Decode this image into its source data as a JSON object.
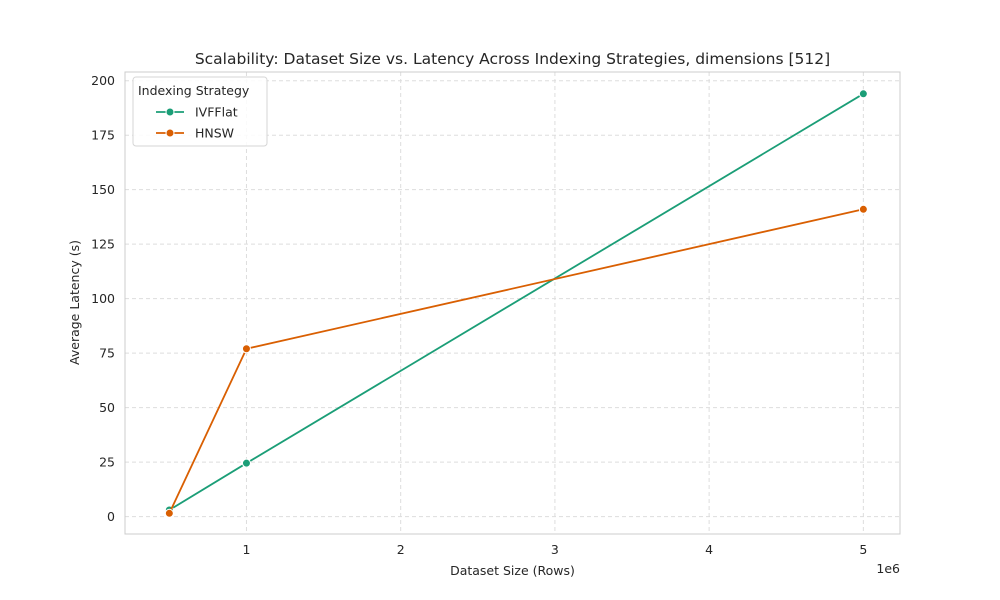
{
  "chart_data": {
    "type": "line",
    "title": "Scalability: Dataset Size vs. Latency Across Indexing Strategies, dimensions [512]",
    "xlabel": "Dataset Size (Rows)",
    "ylabel": "Average Latency (s)",
    "x_offset_label": "1e6",
    "x_ticks": [
      1,
      2,
      3,
      4,
      5
    ],
    "x_tick_labels": [
      "1",
      "2",
      "3",
      "4",
      "5"
    ],
    "y_ticks": [
      0,
      25,
      50,
      75,
      100,
      125,
      150,
      175,
      200
    ],
    "y_tick_labels": [
      "0",
      "25",
      "50",
      "75",
      "100",
      "125",
      "150",
      "175",
      "200"
    ],
    "xlim": [
      0.2125,
      5.2375
    ],
    "ylim": [
      -8,
      204
    ],
    "grid": true,
    "grid_style": "dashed",
    "legend": {
      "title": "Indexing Strategy",
      "placement": "top-left"
    },
    "series": [
      {
        "name": "IVFFlat",
        "color": "#1b9e77",
        "x": [
          0.5,
          1,
          5
        ],
        "y": [
          3,
          24.5,
          194
        ]
      },
      {
        "name": "HNSW",
        "color": "#d95f02",
        "x": [
          0.5,
          1,
          5
        ],
        "y": [
          1.5,
          77,
          141
        ]
      }
    ]
  }
}
